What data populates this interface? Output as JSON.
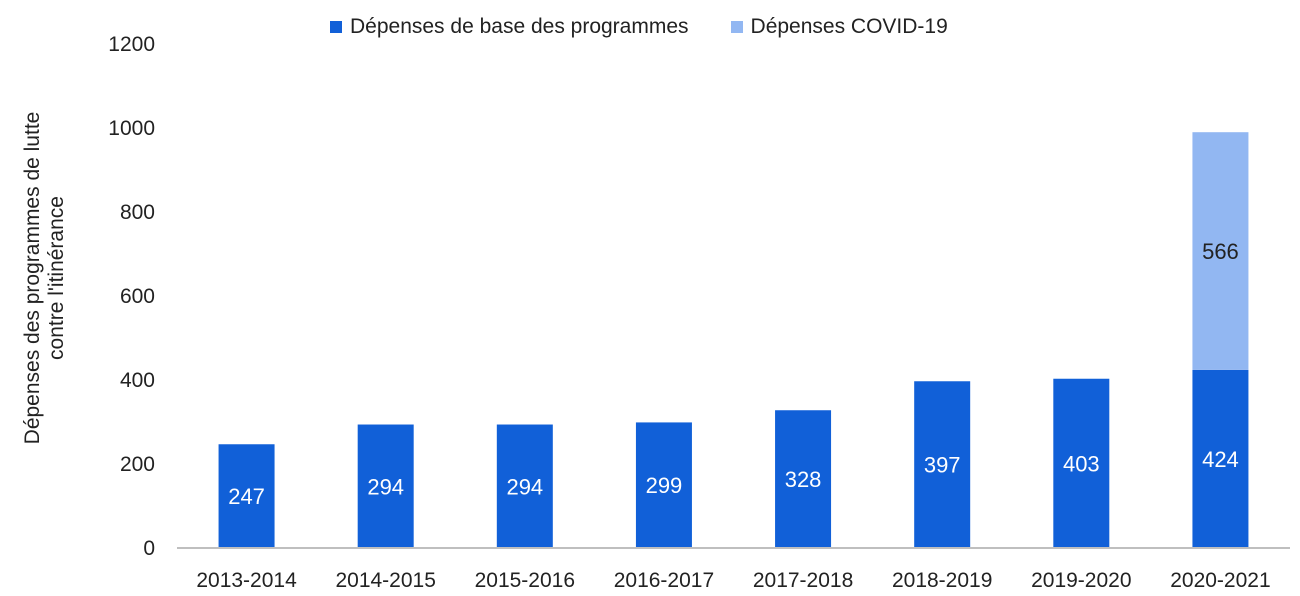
{
  "chart_data": {
    "type": "bar",
    "stacked": true,
    "categories": [
      "2013-2014",
      "2014-2015",
      "2015-2016",
      "2016-2017",
      "2017-2018",
      "2018-2019",
      "2019-2020",
      "2020-2021"
    ],
    "series": [
      {
        "name": "Dépenses de base des programmes",
        "color": "#1160d8",
        "values": [
          247,
          294,
          294,
          299,
          328,
          397,
          403,
          424
        ],
        "label_color": "#ffffff"
      },
      {
        "name": "Dépenses COVID-19",
        "color": "#92b7f2",
        "values": [
          0,
          0,
          0,
          0,
          0,
          0,
          0,
          566
        ],
        "label_color": "#222222"
      }
    ],
    "ylabel_lines": [
      "Dépenses des programmes de lutte",
      "contre l'itinérance"
    ],
    "ylim": [
      0,
      1200
    ],
    "yticks": [
      0,
      200,
      400,
      600,
      800,
      1000,
      1200
    ],
    "legend_position": "top",
    "grid": false
  }
}
